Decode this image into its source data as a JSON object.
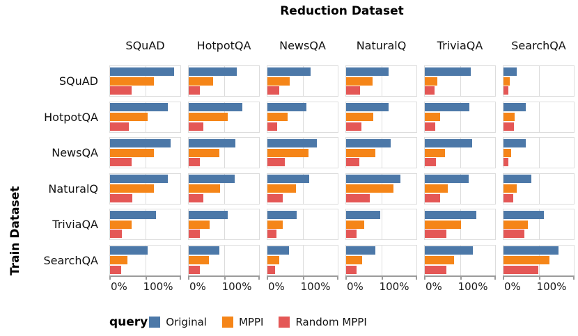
{
  "title": "Reduction Dataset",
  "row_axis_title": "Train Dataset",
  "legend": {
    "title": "query",
    "entries": [
      {
        "label": "Original",
        "color": "#4C78A8"
      },
      {
        "label": "MPPI",
        "color": "#F58518"
      },
      {
        "label": "Random MPPI",
        "color": "#E45756"
      }
    ]
  },
  "chart_data": {
    "type": "bar",
    "orientation": "horizontal",
    "facet_title": "Reduction Dataset",
    "facet_row_title": "Train Dataset",
    "facet_columns": [
      "SQuAD",
      "HotpotQA",
      "NewsQA",
      "NaturalQ",
      "TriviaQA",
      "SearchQA"
    ],
    "facet_rows": [
      "SQuAD",
      "HotpotQA",
      "NewsQA",
      "NaturalQ",
      "TriviaQA",
      "SearchQA"
    ],
    "series_names": [
      "Original",
      "MPPI",
      "Random MPPI"
    ],
    "series_colors": [
      "#4C78A8",
      "#F58518",
      "#E45756"
    ],
    "x_axis": {
      "tick_labels": [
        "0%",
        "100%"
      ],
      "range": [
        0,
        200
      ],
      "gridline_at": 100,
      "unit": "%"
    },
    "legend_position": "bottom",
    "values": [
      [
        [
          182,
          124,
          62
        ],
        [
          137,
          70,
          32
        ],
        [
          123,
          63,
          34
        ],
        [
          120,
          75,
          39
        ],
        [
          130,
          36,
          27
        ],
        [
          37,
          18,
          14
        ]
      ],
      [
        [
          165,
          107,
          54
        ],
        [
          153,
          110,
          41
        ],
        [
          111,
          57,
          28
        ],
        [
          120,
          78,
          43
        ],
        [
          127,
          44,
          29
        ],
        [
          64,
          31,
          29
        ]
      ],
      [
        [
          173,
          125,
          62
        ],
        [
          133,
          87,
          31
        ],
        [
          140,
          117,
          50
        ],
        [
          127,
          84,
          38
        ],
        [
          134,
          57,
          32
        ],
        [
          64,
          21,
          13
        ]
      ],
      [
        [
          165,
          125,
          64
        ],
        [
          131,
          90,
          41
        ],
        [
          119,
          81,
          44
        ],
        [
          155,
          135,
          68
        ],
        [
          125,
          66,
          43
        ],
        [
          79,
          37,
          27
        ]
      ],
      [
        [
          131,
          62,
          34
        ],
        [
          111,
          60,
          31
        ],
        [
          83,
          43,
          26
        ],
        [
          98,
          52,
          29
        ],
        [
          147,
          102,
          61
        ],
        [
          114,
          70,
          60
        ]
      ],
      [
        [
          106,
          49,
          31
        ],
        [
          87,
          57,
          31
        ],
        [
          62,
          34,
          22
        ],
        [
          84,
          45,
          29
        ],
        [
          137,
          84,
          61
        ],
        [
          157,
          130,
          99
        ]
      ]
    ]
  }
}
